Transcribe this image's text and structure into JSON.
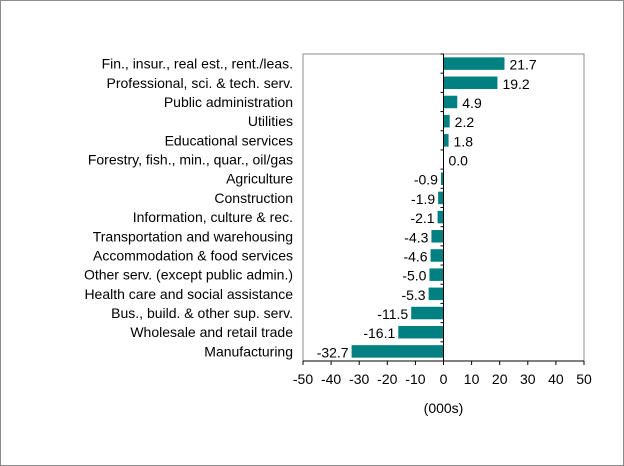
{
  "chart_data": {
    "type": "bar",
    "orientation": "horizontal",
    "categories": [
      "Fin., insur., real est., rent./leas.",
      "Professional, sci. & tech. serv.",
      "Public administration",
      "Utilities",
      "Educational services",
      "Forestry, fish., min., quar., oil/gas",
      "Agriculture",
      "Construction",
      "Information, culture & rec.",
      "Transportation and warehousing",
      "Accommodation & food services",
      "Other serv. (except public admin.)",
      "Health care and social assistance",
      "Bus., build. & other sup. serv.",
      "Wholesale and retail trade",
      "Manufacturing"
    ],
    "values": [
      21.7,
      19.2,
      4.9,
      2.2,
      1.8,
      0.0,
      -0.9,
      -1.9,
      -2.1,
      -4.3,
      -4.6,
      -5.0,
      -5.3,
      -11.5,
      -16.1,
      -32.7
    ],
    "value_labels": [
      "21.7",
      "19.2",
      "4.9",
      "2.2",
      "1.8",
      "0.0",
      "-0.9",
      "-1.9",
      "-2.1",
      "-4.3",
      "-4.6",
      "-5.0",
      "-5.3",
      "-11.5",
      "-16.1",
      "-32.7"
    ],
    "xlim": [
      -50,
      50
    ],
    "xticks": [
      "-50",
      "-40",
      "-30",
      "-20",
      "-10",
      "0",
      "10",
      "20",
      "30",
      "40",
      "50"
    ],
    "xlabel": "(000s)",
    "ylabel": "",
    "title": "",
    "grid": false,
    "bar_color": "#008080"
  }
}
